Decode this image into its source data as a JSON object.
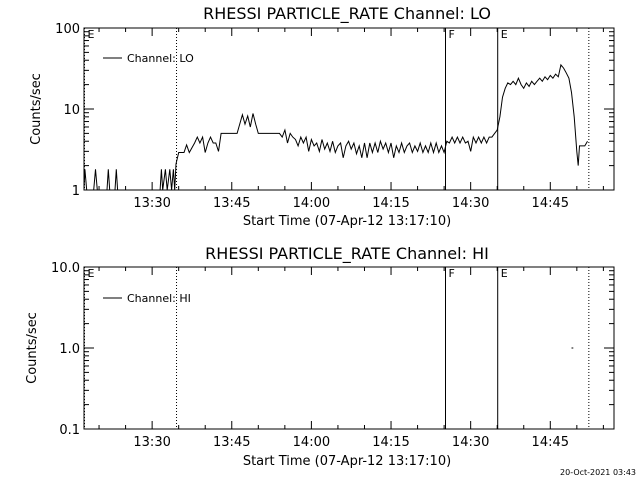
{
  "timestamp": "20-Oct-2021 03:43",
  "chart_data": [
    {
      "type": "line",
      "title": "RHESSI PARTICLE_RATE Channel: LO",
      "xlabel": "Start Time (07-Apr-12 13:17:10)",
      "ylabel": "Counts/sec",
      "y_scale": "log",
      "ylim": [
        1,
        100
      ],
      "yticks": [
        "1",
        "10",
        "100"
      ],
      "xlim": [
        "13:17:10",
        "14:57:00"
      ],
      "xticks": [
        "13:30",
        "13:45",
        "14:00",
        "14:15",
        "14:30",
        "14:45"
      ],
      "legend": {
        "label": "Channel: LO",
        "placement": "top-left"
      },
      "grid": false,
      "markers": [
        {
          "label": "E",
          "time": "13:17:10",
          "style": "dotted"
        },
        {
          "label": "",
          "time": "13:34:30",
          "style": "dotted"
        },
        {
          "label": "F",
          "time": "14:25:10",
          "style": "solid"
        },
        {
          "label": "E",
          "time": "14:35:00",
          "style": "solid"
        },
        {
          "label": "",
          "time": "14:52:10",
          "style": "dotted"
        }
      ],
      "series": [
        {
          "name": "Channel: LO",
          "points": [
            [
              "13:17:10",
              0.5
            ],
            [
              "13:17:20",
              1.8
            ],
            [
              "13:17:40",
              1.0
            ],
            [
              "13:19:00",
              1.0
            ],
            [
              "13:19:20",
              1.8
            ],
            [
              "13:19:40",
              0.5
            ],
            [
              "13:21:30",
              0.5
            ],
            [
              "13:21:45",
              1.8
            ],
            [
              "13:22:00",
              0.5
            ],
            [
              "13:23:00",
              0.5
            ],
            [
              "13:23:15",
              1.8
            ],
            [
              "13:23:30",
              0.5
            ],
            [
              "13:31:30",
              0.5
            ],
            [
              "13:31:45",
              1.8
            ],
            [
              "13:32:00",
              1.0
            ],
            [
              "13:32:30",
              1.8
            ],
            [
              "13:32:50",
              1.0
            ],
            [
              "13:33:20",
              1.8
            ],
            [
              "13:33:40",
              1.0
            ],
            [
              "13:34:00",
              1.8
            ],
            [
              "13:34:15",
              1.0
            ],
            [
              "13:34:30",
              2.1
            ],
            [
              "13:35:00",
              2.9
            ],
            [
              "13:36:00",
              2.9
            ],
            [
              "13:36:30",
              3.6
            ],
            [
              "13:37:00",
              2.9
            ],
            [
              "13:38:00",
              3.8
            ],
            [
              "13:38:30",
              4.5
            ],
            [
              "13:39:00",
              3.8
            ],
            [
              "13:39:30",
              4.5
            ],
            [
              "13:40:00",
              2.9
            ],
            [
              "13:40:30",
              3.8
            ],
            [
              "13:41:00",
              4.5
            ],
            [
              "13:41:30",
              3.8
            ],
            [
              "13:42:00",
              3.8
            ],
            [
              "13:42:30",
              3.0
            ],
            [
              "13:43:00",
              5.0
            ],
            [
              "13:44:00",
              5.0
            ],
            [
              "13:45:00",
              5.0
            ],
            [
              "13:46:00",
              5.0
            ],
            [
              "13:46:30",
              6.5
            ],
            [
              "13:47:00",
              8.5
            ],
            [
              "13:47:30",
              6.5
            ],
            [
              "13:48:00",
              8.2
            ],
            [
              "13:48:30",
              6.0
            ],
            [
              "13:49:00",
              8.8
            ],
            [
              "13:49:30",
              6.5
            ],
            [
              "13:50:00",
              5.0
            ],
            [
              "13:51:00",
              5.0
            ],
            [
              "13:52:00",
              5.0
            ],
            [
              "13:53:00",
              5.0
            ],
            [
              "13:54:00",
              5.0
            ],
            [
              "13:54:30",
              4.5
            ],
            [
              "13:55:00",
              5.5
            ],
            [
              "13:55:30",
              3.8
            ],
            [
              "13:56:00",
              5.0
            ],
            [
              "13:56:30",
              4.5
            ],
            [
              "13:57:00",
              4.2
            ],
            [
              "13:57:30",
              3.5
            ],
            [
              "13:58:00",
              4.5
            ],
            [
              "13:58:30",
              3.8
            ],
            [
              "13:59:00",
              4.5
            ],
            [
              "13:59:30",
              3.0
            ],
            [
              "14:00:00",
              4.2
            ],
            [
              "14:00:30",
              3.5
            ],
            [
              "14:01:00",
              3.8
            ],
            [
              "14:01:30",
              3.0
            ],
            [
              "14:02:00",
              4.2
            ],
            [
              "14:02:30",
              3.2
            ],
            [
              "14:03:00",
              3.8
            ],
            [
              "14:03:30",
              3.0
            ],
            [
              "14:04:00",
              4.0
            ],
            [
              "14:04:30",
              2.9
            ],
            [
              "14:05:00",
              3.5
            ],
            [
              "14:05:30",
              3.8
            ],
            [
              "14:06:00",
              2.5
            ],
            [
              "14:06:30",
              3.5
            ],
            [
              "14:07:00",
              4.0
            ],
            [
              "14:07:30",
              3.2
            ],
            [
              "14:08:00",
              3.8
            ],
            [
              "14:08:30",
              2.8
            ],
            [
              "14:09:00",
              3.5
            ],
            [
              "14:09:30",
              2.5
            ],
            [
              "14:10:00",
              3.8
            ],
            [
              "14:10:30",
              2.5
            ],
            [
              "14:11:00",
              3.8
            ],
            [
              "14:11:30",
              2.9
            ],
            [
              "14:12:00",
              3.8
            ],
            [
              "14:12:30",
              2.9
            ],
            [
              "14:13:00",
              4.0
            ],
            [
              "14:13:30",
              3.2
            ],
            [
              "14:14:00",
              3.8
            ],
            [
              "14:14:30",
              2.9
            ],
            [
              "14:15:00",
              3.8
            ],
            [
              "14:15:30",
              2.5
            ],
            [
              "14:16:00",
              3.5
            ],
            [
              "14:16:30",
              2.9
            ],
            [
              "14:17:00",
              3.8
            ],
            [
              "14:17:30",
              2.9
            ],
            [
              "14:18:00",
              3.5
            ],
            [
              "14:18:30",
              3.8
            ],
            [
              "14:19:00",
              2.9
            ],
            [
              "14:19:30",
              3.5
            ],
            [
              "14:20:00",
              3.0
            ],
            [
              "14:20:30",
              3.8
            ],
            [
              "14:21:00",
              2.9
            ],
            [
              "14:21:30",
              3.5
            ],
            [
              "14:22:00",
              2.9
            ],
            [
              "14:22:30",
              3.8
            ],
            [
              "14:23:00",
              2.9
            ],
            [
              "14:23:30",
              3.8
            ],
            [
              "14:24:00",
              2.9
            ],
            [
              "14:24:30",
              3.5
            ],
            [
              "14:25:00",
              2.9
            ],
            [
              "14:25:30",
              4.0
            ],
            [
              "14:26:00",
              3.8
            ],
            [
              "14:26:30",
              4.5
            ],
            [
              "14:27:00",
              3.8
            ],
            [
              "14:27:30",
              4.5
            ],
            [
              "14:28:00",
              3.8
            ],
            [
              "14:28:30",
              4.5
            ],
            [
              "14:29:00",
              3.8
            ],
            [
              "14:29:30",
              4.0
            ],
            [
              "14:30:00",
              3.0
            ],
            [
              "14:30:30",
              4.5
            ],
            [
              "14:31:00",
              3.8
            ],
            [
              "14:31:30",
              4.5
            ],
            [
              "14:32:00",
              3.8
            ],
            [
              "14:32:30",
              4.5
            ],
            [
              "14:33:00",
              3.8
            ],
            [
              "14:33:30",
              4.5
            ],
            [
              "14:34:00",
              4.5
            ],
            [
              "14:34:30",
              5.0
            ],
            [
              "14:35:00",
              5.5
            ],
            [
              "14:35:30",
              8.0
            ],
            [
              "14:36:00",
              14
            ],
            [
              "14:36:30",
              18
            ],
            [
              "14:37:00",
              21
            ],
            [
              "14:37:30",
              20
            ],
            [
              "14:38:00",
              22
            ],
            [
              "14:38:30",
              20
            ],
            [
              "14:39:00",
              24
            ],
            [
              "14:39:30",
              20
            ],
            [
              "14:40:00",
              18
            ],
            [
              "14:40:30",
              21
            ],
            [
              "14:41:00",
              19
            ],
            [
              "14:41:30",
              22
            ],
            [
              "14:42:00",
              20
            ],
            [
              "14:42:30",
              22
            ],
            [
              "14:43:00",
              24
            ],
            [
              "14:43:30",
              22
            ],
            [
              "14:44:00",
              25
            ],
            [
              "14:44:30",
              23
            ],
            [
              "14:45:00",
              26
            ],
            [
              "14:45:30",
              24
            ],
            [
              "14:46:00",
              27
            ],
            [
              "14:46:30",
              25
            ],
            [
              "14:47:00",
              35
            ],
            [
              "14:47:30",
              32
            ],
            [
              "14:48:00",
              28
            ],
            [
              "14:48:30",
              24
            ],
            [
              "14:49:00",
              16
            ],
            [
              "14:49:30",
              8.0
            ],
            [
              "14:50:00",
              3.0
            ],
            [
              "14:50:15",
              2.0
            ],
            [
              "14:50:30",
              3.5
            ],
            [
              "14:51:30",
              3.5
            ],
            [
              "14:52:00",
              4.0
            ]
          ]
        }
      ]
    },
    {
      "type": "line",
      "title": "RHESSI PARTICLE_RATE Channel: HI",
      "xlabel": "Start Time (07-Apr-12 13:17:10)",
      "ylabel": "Counts/sec",
      "y_scale": "log",
      "ylim": [
        0.1,
        10
      ],
      "yticks": [
        "0.1",
        "1.0",
        "10.0"
      ],
      "xlim": [
        "13:17:10",
        "14:57:00"
      ],
      "xticks": [
        "13:30",
        "13:45",
        "14:00",
        "14:15",
        "14:30",
        "14:45"
      ],
      "legend": {
        "label": "Channel: HI",
        "placement": "top-left"
      },
      "grid": false,
      "markers": [
        {
          "label": "E",
          "time": "13:17:10",
          "style": "dotted"
        },
        {
          "label": "",
          "time": "13:34:30",
          "style": "dotted"
        },
        {
          "label": "F",
          "time": "14:25:10",
          "style": "solid"
        },
        {
          "label": "E",
          "time": "14:35:00",
          "style": "solid"
        },
        {
          "label": "",
          "time": "14:52:10",
          "style": "dotted"
        }
      ],
      "series": [
        {
          "name": "Channel: HI",
          "points": [
            [
              "14:49:00",
              1.0
            ],
            [
              "14:49:20",
              1.0
            ]
          ]
        }
      ]
    }
  ]
}
